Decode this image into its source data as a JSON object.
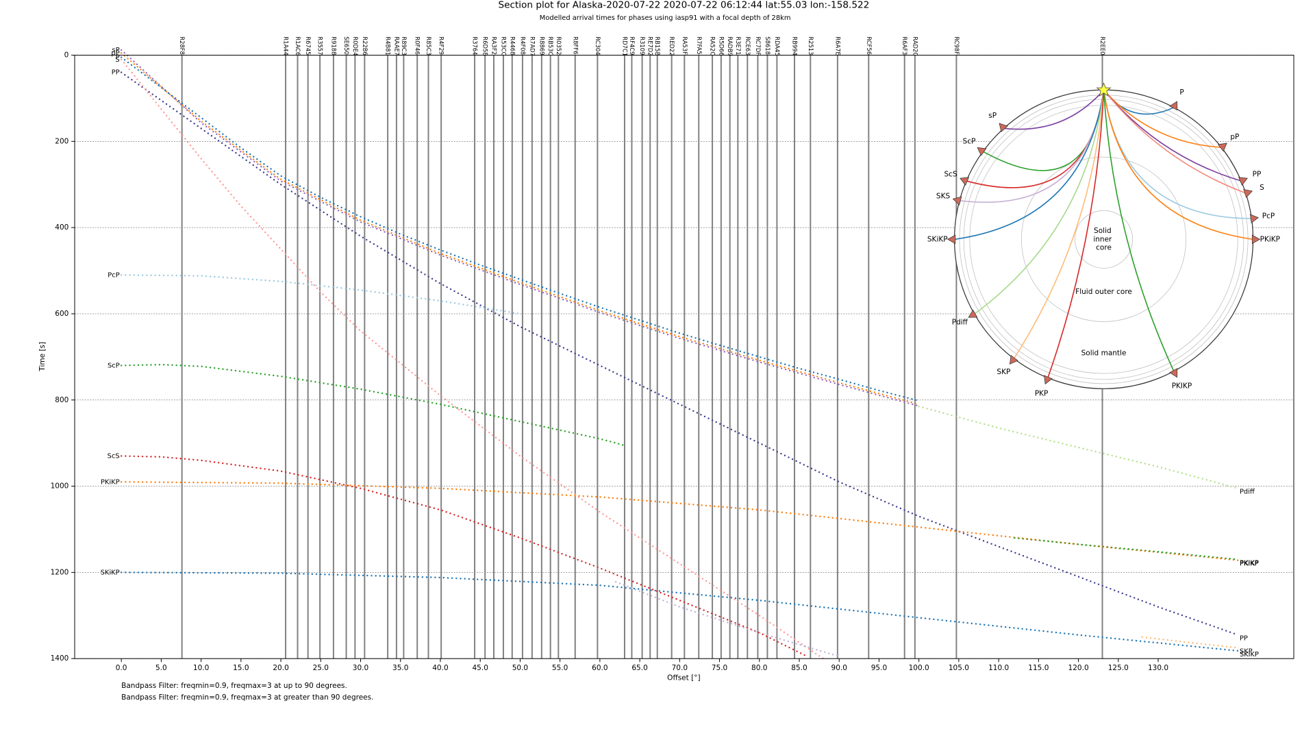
{
  "chart_data": {
    "type": "section",
    "title": "Section plot for Alaska-2020-07-22 2020-07-22 06:12:44 lat:55.03 lon:-158.522",
    "subtitle": "Modelled arrival times for phases using iasp91 with a focal depth of 28km",
    "xlabel": "Offset [°]",
    "ylabel": "Time [s]",
    "xlim": [
      -5.85,
      147.0
    ],
    "ylim": [
      0,
      1400
    ],
    "y_inverted": true,
    "xticks": [
      {
        "value": 0,
        "label": "0.0"
      },
      {
        "value": 5,
        "label": "5.0"
      },
      {
        "value": 10,
        "label": "10.0"
      },
      {
        "value": 15,
        "label": "15.0"
      },
      {
        "value": 20,
        "label": "20.0"
      },
      {
        "value": 25,
        "label": "25.0"
      },
      {
        "value": 30,
        "label": "30.0"
      },
      {
        "value": 35,
        "label": "35.0"
      },
      {
        "value": 40,
        "label": "40.0"
      },
      {
        "value": 45,
        "label": "45.0"
      },
      {
        "value": 50,
        "label": "50.0"
      },
      {
        "value": 55,
        "label": "55.0"
      },
      {
        "value": 60,
        "label": "60.0"
      },
      {
        "value": 65,
        "label": "65.0"
      },
      {
        "value": 70,
        "label": "70.0"
      },
      {
        "value": 75,
        "label": "75.0"
      },
      {
        "value": 80,
        "label": "80.0"
      },
      {
        "value": 85,
        "label": "85.0"
      },
      {
        "value": 90,
        "label": "90.0"
      },
      {
        "value": 95,
        "label": "95.0"
      },
      {
        "value": 100,
        "label": "100.0"
      },
      {
        "value": 105,
        "label": "105.0"
      },
      {
        "value": 110,
        "label": "110.0"
      },
      {
        "value": 115,
        "label": "115.0"
      },
      {
        "value": 120,
        "label": "120.0"
      },
      {
        "value": 125,
        "label": "125.0"
      },
      {
        "value": 130,
        "label": "130.0"
      }
    ],
    "yticks": [
      0,
      200,
      400,
      600,
      800,
      1000,
      1200,
      1400
    ],
    "grid": true,
    "trace_color": "#808080",
    "stations": [
      {
        "name": "R28F8",
        "x": 7.6
      },
      {
        "name": "R1A44",
        "x": 20.6
      },
      {
        "name": "R1AC6",
        "x": 22.1
      },
      {
        "name": "R6745",
        "x": 23.4
      },
      {
        "name": "R3557",
        "x": 24.9
      },
      {
        "name": "R9188",
        "x": 26.6
      },
      {
        "name": "SE650",
        "x": 28.2
      },
      {
        "name": "R0DE4",
        "x": 29.3
      },
      {
        "name": "R22B6",
        "x": 30.5
      },
      {
        "name": "R4B81",
        "x": 33.4
      },
      {
        "name": "RAAE7",
        "x": 34.5
      },
      {
        "name": "R89C3",
        "x": 35.4
      },
      {
        "name": "R0F46",
        "x": 37.1
      },
      {
        "name": "R85C3",
        "x": 38.5
      },
      {
        "name": "R4F29",
        "x": 40.1
      },
      {
        "name": "R3764",
        "x": 44.3
      },
      {
        "name": "R6D5B",
        "x": 45.6
      },
      {
        "name": "RA3F2",
        "x": 46.7
      },
      {
        "name": "R53CC",
        "x": 47.9
      },
      {
        "name": "R4468",
        "x": 49.0
      },
      {
        "name": "R4F08",
        "x": 50.3
      },
      {
        "name": "R7AD7",
        "x": 51.5
      },
      {
        "name": "R8869",
        "x": 52.7
      },
      {
        "name": "RB53C",
        "x": 53.8
      },
      {
        "name": "R0352",
        "x": 54.8
      },
      {
        "name": "R8FF6",
        "x": 56.9
      },
      {
        "name": "RC304",
        "x": 59.7
      },
      {
        "name": "RD7C1",
        "x": 63.1
      },
      {
        "name": "RF4C9",
        "x": 64.0
      },
      {
        "name": "R3109",
        "x": 65.3
      },
      {
        "name": "RE7D2",
        "x": 66.3
      },
      {
        "name": "RB15B",
        "x": 67.2
      },
      {
        "name": "RED22",
        "x": 69.0
      },
      {
        "name": "RA53F",
        "x": 70.6
      },
      {
        "name": "R7FA5",
        "x": 72.4,
        "color": "#d62728"
      },
      {
        "name": "RA52C",
        "x": 74.1
      },
      {
        "name": "R5D66",
        "x": 75.2
      },
      {
        "name": "RADB9",
        "x": 76.3
      },
      {
        "name": "R3E71",
        "x": 77.3
      },
      {
        "name": "RCE63",
        "x": 78.5
      },
      {
        "name": "RC7DF",
        "x": 79.8
      },
      {
        "name": "S8618",
        "x": 81.0
      },
      {
        "name": "RDA45",
        "x": 82.2
      },
      {
        "name": "RB994",
        "x": 84.4
      },
      {
        "name": "R2513",
        "x": 86.4
      },
      {
        "name": "R6A7E",
        "x": 89.8
      },
      {
        "name": "RCF56",
        "x": 93.7
      },
      {
        "name": "R6AF3",
        "x": 98.2
      },
      {
        "name": "RAD20",
        "x": 99.5
      },
      {
        "name": "RC98F",
        "x": 104.7
      },
      {
        "name": "R2EE0",
        "x": 123.0
      }
    ],
    "phases": [
      {
        "name": "sP",
        "color": "#9467bd",
        "x": [
          0,
          10,
          20,
          30,
          40,
          50,
          60,
          70,
          80,
          90,
          100
        ],
        "values": [
          -12,
          157,
          292,
          387,
          464,
          532,
          597,
          657,
          712,
          764,
          814
        ]
      },
      {
        "name": "pP",
        "color": "#ff7f0e",
        "x": [
          0,
          10,
          20,
          30,
          40,
          50,
          60,
          70,
          80,
          90,
          100
        ],
        "values": [
          -5,
          153,
          288,
          383,
          460,
          528,
          593,
          653,
          708,
          760,
          810
        ]
      },
      {
        "name": "P",
        "color": "#1f77b4",
        "x": [
          0,
          5,
          10,
          15,
          20,
          25,
          30,
          35,
          40,
          45,
          50,
          55,
          60,
          65,
          70,
          75,
          80,
          85,
          90,
          95,
          100
        ],
        "values": [
          5,
          75,
          145,
          215,
          280,
          330,
          375,
          415,
          452,
          487,
          520,
          553,
          585,
          615,
          645,
          673,
          700,
          727,
          752,
          778,
          802
        ]
      },
      {
        "name": "PP",
        "color": "#3f3f8f",
        "x": [
          0,
          10,
          20,
          30,
          40,
          50,
          60,
          70,
          80,
          90,
          100,
          110,
          120,
          130,
          140
        ],
        "values": [
          40,
          170,
          300,
          420,
          530,
          630,
          720,
          810,
          900,
          990,
          1070,
          1140,
          1210,
          1280,
          1345
        ]
      },
      {
        "name": "S",
        "color": "#ff9896",
        "x": [
          0,
          5,
          10,
          15,
          20,
          25,
          30,
          40,
          50,
          60,
          70,
          80,
          88
        ],
        "values": [
          10,
          125,
          240,
          350,
          450,
          550,
          640,
          790,
          930,
          1060,
          1180,
          1300,
          1400
        ]
      },
      {
        "name": "PcP",
        "color": "#9ecae1",
        "x": [
          0,
          10,
          20,
          30,
          40,
          50
        ],
        "values": [
          510,
          512,
          525,
          545,
          570,
          600
        ]
      },
      {
        "name": "ScP",
        "color": "#2ca02c",
        "x": [
          0,
          5,
          10,
          20,
          30,
          40,
          50,
          60,
          63
        ],
        "values": [
          720,
          718,
          722,
          745,
          775,
          810,
          850,
          890,
          905
        ]
      },
      {
        "name": "ScS",
        "color": "#d62728",
        "x": [
          0,
          5,
          10,
          20,
          30,
          40,
          50,
          60,
          70,
          80,
          86
        ],
        "values": [
          930,
          932,
          940,
          965,
          1005,
          1055,
          1120,
          1190,
          1265,
          1340,
          1395
        ]
      },
      {
        "name": "PKiKP",
        "color": "#ff7f0e",
        "x": [
          0,
          20,
          40,
          60,
          80,
          100,
          120,
          140
        ],
        "values": [
          990,
          993,
          1005,
          1025,
          1055,
          1095,
          1135,
          1172
        ]
      },
      {
        "name": "SKiKP",
        "color": "#1f77b4",
        "x": [
          0,
          20,
          40,
          60,
          80,
          100,
          120,
          140
        ],
        "values": [
          1200,
          1202,
          1212,
          1230,
          1265,
          1305,
          1345,
          1382
        ]
      },
      {
        "name": "SKS",
        "color": "#c5b0d5",
        "x": [
          62,
          70,
          80,
          90
        ],
        "values": [
          1222,
          1280,
          1340,
          1395
        ]
      },
      {
        "name": "Pdiff",
        "color": "#b5de8c",
        "x": [
          100,
          110,
          120,
          130,
          140
        ],
        "values": [
          815,
          865,
          910,
          955,
          1005
        ]
      },
      {
        "name": "PKIKP",
        "color": "#2ca02c",
        "x": [
          112,
          120,
          130,
          140
        ],
        "values": [
          1120,
          1135,
          1152,
          1170
        ]
      },
      {
        "name": "SKP",
        "color": "#ffbb78",
        "x": [
          128,
          134,
          140
        ],
        "values": [
          1350,
          1363,
          1375
        ]
      }
    ],
    "notes": [
      "Bandpass Filter: freqmin=0.9, freqmax=3 at up to 90 degrees.",
      "Bandpass Filter: freqmin=0.9, freqmax=3 at greater than 90 degrees."
    ]
  },
  "inset": {
    "labels": [
      "sP",
      "ScP",
      "P",
      "pP",
      "PP",
      "S",
      "ScS",
      "PcP",
      "SKS",
      "SKiKP",
      "PKiKP",
      "Pdiff",
      "SKP",
      "PKIKP",
      "PKP"
    ],
    "inner_core": [
      "Solid",
      "inner",
      "core"
    ],
    "outer_core": "Fluid outer core",
    "mantle": "Solid mantle"
  }
}
